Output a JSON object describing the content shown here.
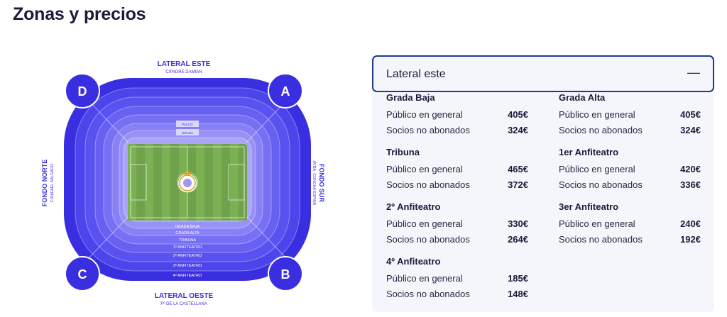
{
  "page": {
    "title": "Zonas y precios"
  },
  "map": {
    "top_label": "LATERAL ESTE",
    "top_sub": "C/PADRE DAMIAN",
    "bottom_label": "LATERAL OESTE",
    "bottom_sub": "Pº DE LA CASTELLANA",
    "left_label": "FONDO NORTE",
    "left_sub": "C/RAFAEL SALGADO",
    "right_label": "FONDO SUR",
    "right_sub": "AVDA. CONCHA ESPINA",
    "corners": {
      "a": "A",
      "b": "B",
      "c": "C",
      "d": "D"
    },
    "rings": [
      "GRADA BAJA",
      "GRADA ALTA",
      "TRIBUNA",
      "1º ANFITEATRO",
      "2º ANFITEATRO",
      "3º ANFITEATRO",
      "4º ANFITEATRO"
    ],
    "top_small": [
      "PALCO",
      "GRADA"
    ],
    "colors": {
      "outer": "#3a2fe0",
      "mid": "#5a4ff0",
      "light": "#7b73f5",
      "lighter": "#a29cf8",
      "pitch": "#6fa24a"
    }
  },
  "panel": {
    "title": "Lateral este",
    "collapse_icon": "—",
    "zones": [
      {
        "name": "Grada Baja",
        "rows": [
          {
            "label": "Público en general",
            "price": "405€"
          },
          {
            "label": "Socios no abonados",
            "price": "324€"
          }
        ]
      },
      {
        "name": "Grada Alta",
        "rows": [
          {
            "label": "Público en general",
            "price": "405€"
          },
          {
            "label": "Socios no abonados",
            "price": "324€"
          }
        ]
      },
      {
        "name": "Tribuna",
        "rows": [
          {
            "label": "Público en general",
            "price": "465€"
          },
          {
            "label": "Socios no abonados",
            "price": "372€"
          }
        ]
      },
      {
        "name": "1er Anfiteatro",
        "rows": [
          {
            "label": "Público en general",
            "price": "420€"
          },
          {
            "label": "Socios no abonados",
            "price": "336€"
          }
        ]
      },
      {
        "name": "2º Anfiteatro",
        "rows": [
          {
            "label": "Público en general",
            "price": "330€"
          },
          {
            "label": "Socios no abonados",
            "price": "264€"
          }
        ]
      },
      {
        "name": "3er Anfiteatro",
        "rows": [
          {
            "label": "Público en general",
            "price": "240€"
          },
          {
            "label": "Socios no abonados",
            "price": "192€"
          }
        ]
      },
      {
        "name": "4º Anfiteatro",
        "rows": [
          {
            "label": "Público en general",
            "price": "185€"
          },
          {
            "label": "Socios no abonados",
            "price": "148€"
          }
        ]
      }
    ]
  }
}
